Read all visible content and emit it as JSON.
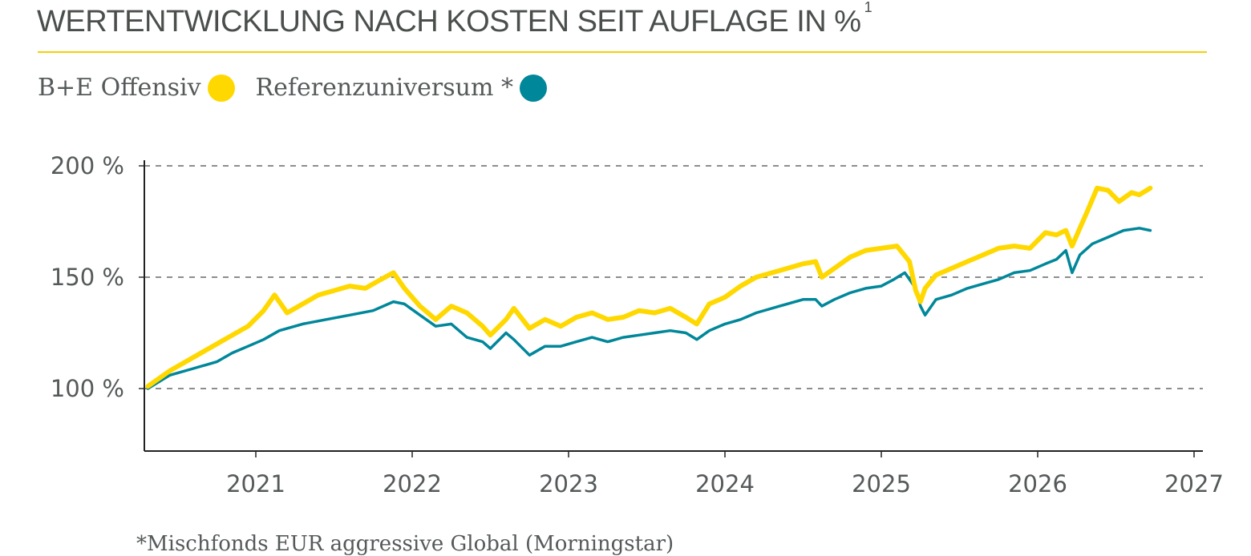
{
  "header": {
    "title": "WERTENTWICKLUNG NACH KOSTEN SEIT AUFLAGE IN %",
    "title_sup": "1"
  },
  "legend": {
    "items": [
      {
        "label": "B+E Offensiv",
        "color": "#ffd800"
      },
      {
        "label": "Referenzuniversum *",
        "color": "#00879a"
      }
    ]
  },
  "footnote": "*Mischfonds EUR aggressive Global (Morningstar)",
  "chart_data": {
    "type": "line",
    "title": "WERTENTWICKLUNG NACH KOSTEN SEIT AUFLAGE IN %",
    "xlabel": "",
    "ylabel": "",
    "xlim": [
      2020.31,
      2027.0
    ],
    "ylim": [
      72,
      205
    ],
    "x_ticks": [
      2021,
      2022,
      2023,
      2024,
      2025,
      2026,
      2027
    ],
    "x_tick_labels": [
      "2021",
      "2022",
      "2023",
      "2024",
      "2025",
      "2026",
      "2027"
    ],
    "y_ticks": [
      100,
      150,
      200
    ],
    "y_tick_labels": [
      "100 %",
      "150 %",
      "200 %"
    ],
    "grid": "horizontal dashed",
    "legend_position": "top-left",
    "series": [
      {
        "name": "B+E Offensiv",
        "color": "#ffd800",
        "x": [
          2020.31,
          2020.45,
          2020.6,
          2020.75,
          2020.85,
          2020.95,
          2021.05,
          2021.12,
          2021.2,
          2021.3,
          2021.4,
          2021.5,
          2021.6,
          2021.7,
          2021.8,
          2021.88,
          2021.95,
          2022.05,
          2022.15,
          2022.25,
          2022.35,
          2022.45,
          2022.5,
          2022.6,
          2022.65,
          2022.75,
          2022.85,
          2022.95,
          2023.05,
          2023.15,
          2023.25,
          2023.35,
          2023.45,
          2023.55,
          2023.65,
          2023.75,
          2023.82,
          2023.9,
          2024.0,
          2024.1,
          2024.2,
          2024.35,
          2024.5,
          2024.58,
          2024.62,
          2024.7,
          2024.8,
          2024.9,
          2025.0,
          2025.1,
          2025.18,
          2025.22,
          2025.25,
          2025.28,
          2025.35,
          2025.45,
          2025.55,
          2025.65,
          2025.75,
          2025.85,
          2025.95,
          2026.05,
          2026.12,
          2026.18,
          2026.22,
          2026.27,
          2026.32,
          2026.38,
          2026.45,
          2026.52,
          2026.6,
          2026.65,
          2026.72
        ],
        "values": [
          101,
          108,
          114,
          120,
          124,
          128,
          135,
          142,
          134,
          138,
          142,
          144,
          146,
          145,
          149,
          152,
          145,
          137,
          131,
          137,
          134,
          128,
          124,
          131,
          136,
          127,
          131,
          128,
          132,
          134,
          131,
          132,
          135,
          134,
          136,
          132,
          129,
          138,
          141,
          146,
          150,
          153,
          156,
          157,
          150,
          154,
          159,
          162,
          163,
          164,
          157,
          144,
          139,
          145,
          151,
          154,
          157,
          160,
          163,
          164,
          163,
          170,
          169,
          171,
          164,
          172,
          180,
          190,
          189,
          184,
          188,
          187,
          190
        ]
      },
      {
        "name": "Referenzuniversum *",
        "color": "#00879a",
        "x": [
          2020.31,
          2020.45,
          2020.6,
          2020.75,
          2020.85,
          2020.95,
          2021.05,
          2021.15,
          2021.3,
          2021.45,
          2021.6,
          2021.75,
          2021.88,
          2021.95,
          2022.05,
          2022.15,
          2022.25,
          2022.35,
          2022.45,
          2022.5,
          2022.6,
          2022.65,
          2022.75,
          2022.85,
          2022.95,
          2023.05,
          2023.15,
          2023.25,
          2023.35,
          2023.45,
          2023.55,
          2023.65,
          2023.75,
          2023.82,
          2023.9,
          2024.0,
          2024.1,
          2024.2,
          2024.35,
          2024.5,
          2024.58,
          2024.62,
          2024.7,
          2024.8,
          2024.9,
          2025.0,
          2025.08,
          2025.15,
          2025.22,
          2025.25,
          2025.28,
          2025.35,
          2025.45,
          2025.55,
          2025.65,
          2025.75,
          2025.85,
          2025.95,
          2026.05,
          2026.12,
          2026.18,
          2026.22,
          2026.27,
          2026.35,
          2026.45,
          2026.55,
          2026.65,
          2026.72
        ],
        "values": [
          100,
          106,
          109,
          112,
          116,
          119,
          122,
          126,
          129,
          131,
          133,
          135,
          139,
          138,
          133,
          128,
          129,
          123,
          121,
          118,
          125,
          122,
          115,
          119,
          119,
          121,
          123,
          121,
          123,
          124,
          125,
          126,
          125,
          122,
          126,
          129,
          131,
          134,
          137,
          140,
          140,
          137,
          140,
          143,
          145,
          146,
          149,
          152,
          145,
          137,
          133,
          140,
          142,
          145,
          147,
          149,
          152,
          153,
          156,
          158,
          162,
          152,
          160,
          165,
          168,
          171,
          172,
          171
        ]
      }
    ]
  }
}
